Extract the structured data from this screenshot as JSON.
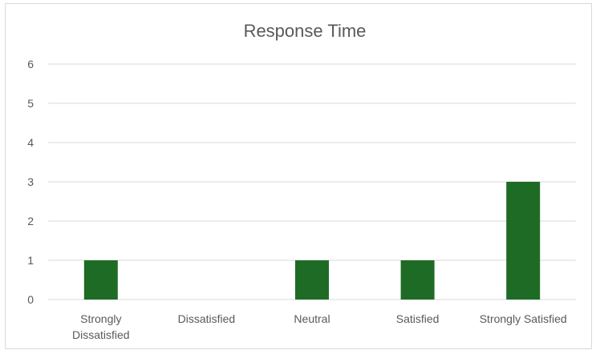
{
  "chart_data": {
    "type": "bar",
    "title": "Response Time",
    "xlabel": "",
    "ylabel": "",
    "categories": [
      "Strongly Dissatisfied",
      "Dissatisfied",
      "Neutral",
      "Satisfied",
      "Strongly Satisfied"
    ],
    "category_label_lines": [
      [
        "Strongly",
        "Dissatisfied"
      ],
      [
        "Dissatisfied"
      ],
      [
        "Neutral"
      ],
      [
        "Satisfied"
      ],
      [
        "Strongly Satisfied"
      ]
    ],
    "values": [
      1,
      0,
      1,
      1,
      3
    ],
    "ylim": [
      0,
      6
    ],
    "yticks": [
      0,
      1,
      2,
      3,
      4,
      5,
      6
    ],
    "grid": true,
    "legend": "none",
    "bar_color": "#1e6b26",
    "gridline_color": "#d9d9d9"
  }
}
